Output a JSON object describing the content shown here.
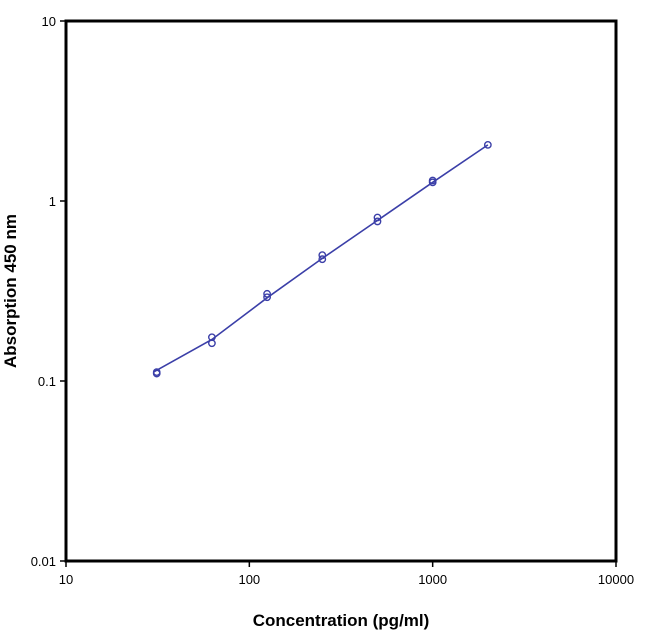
{
  "chart_data": {
    "type": "scatter",
    "xscale": "log",
    "yscale": "log",
    "xlim": [
      10,
      10000
    ],
    "ylim": [
      0.01,
      10
    ],
    "xlabel": "Concentration (pg/ml)",
    "ylabel": "Absorption 450 nm",
    "xticks": [
      "10",
      "100",
      "1000",
      "10000"
    ],
    "yticks": [
      "0.01",
      "0.1",
      "1",
      "10"
    ],
    "grid": false,
    "color": "#3b3fa8",
    "points": [
      {
        "x": 31.25,
        "y": 0.11
      },
      {
        "x": 31.25,
        "y": 0.112
      },
      {
        "x": 62.5,
        "y": 0.175
      },
      {
        "x": 62.5,
        "y": 0.162
      },
      {
        "x": 125,
        "y": 0.305
      },
      {
        "x": 125,
        "y": 0.292
      },
      {
        "x": 250,
        "y": 0.5
      },
      {
        "x": 250,
        "y": 0.475
      },
      {
        "x": 500,
        "y": 0.81
      },
      {
        "x": 500,
        "y": 0.77
      },
      {
        "x": 1000,
        "y": 1.3
      },
      {
        "x": 1000,
        "y": 1.27
      },
      {
        "x": 2000,
        "y": 2.05
      }
    ],
    "fit_line": [
      {
        "x": 30,
        "y": 0.112
      },
      {
        "x": 62.5,
        "y": 0.17
      },
      {
        "x": 125,
        "y": 0.29
      },
      {
        "x": 250,
        "y": 0.48
      },
      {
        "x": 500,
        "y": 0.78
      },
      {
        "x": 1000,
        "y": 1.27
      },
      {
        "x": 2000,
        "y": 2.05
      }
    ]
  }
}
